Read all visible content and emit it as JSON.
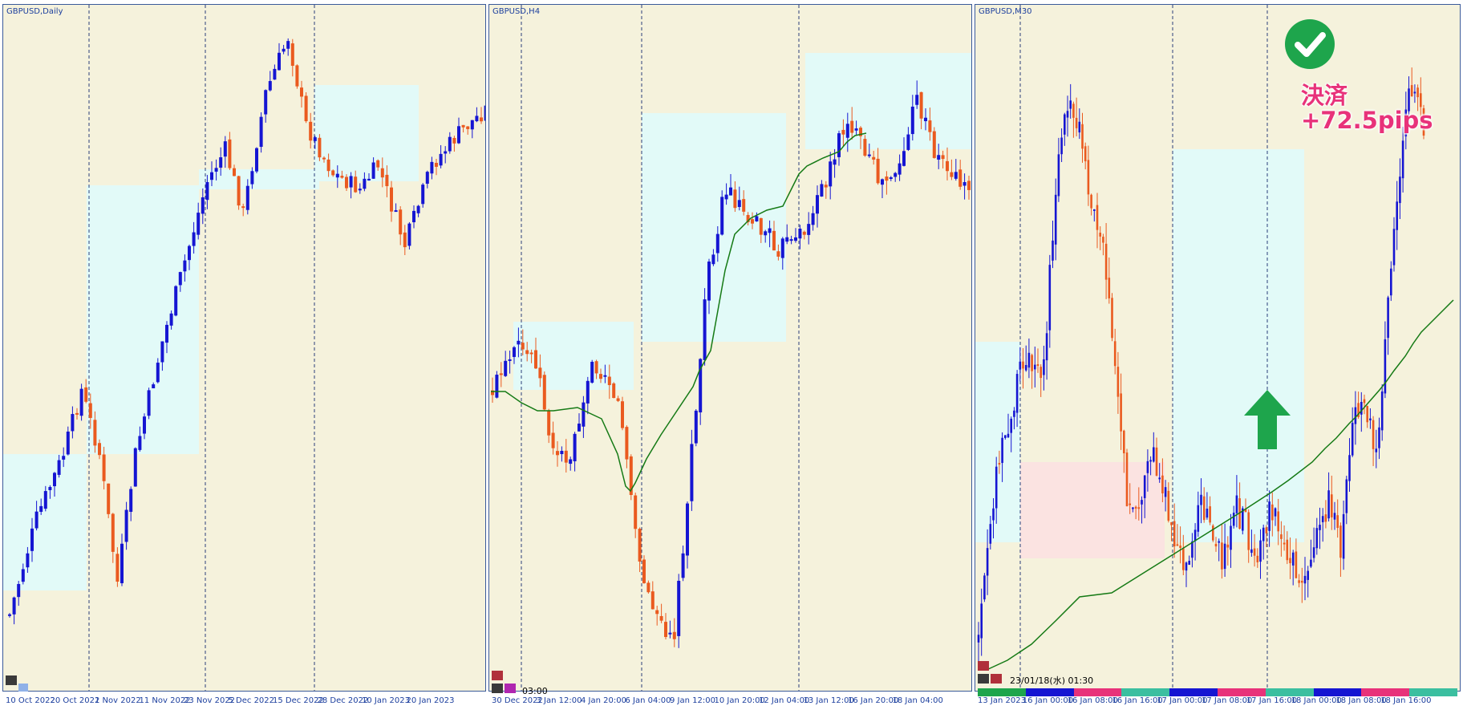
{
  "colors": {
    "background": "#F5F2DC",
    "bull": "#1515D2",
    "bear": "#EA5A1F",
    "ma": "#157A15",
    "zone_cyan": "#E2FAF8",
    "zone_pink": "#FBE3E1",
    "label": "#1c3f9e",
    "accent_green": "#1EA54C",
    "accent_pink": "#E8327A"
  },
  "panels": [
    {
      "title": "GBPUSD,Daily",
      "x_labels": [
        "10 Oct 2022",
        "20 Oct 2022",
        "1 Nov 2022",
        "11 Nov 2022",
        "23 Nov 2022",
        "5 Dec 2022",
        "15 Dec 2022",
        "28 Dec 2022",
        "10 Jan 2023",
        "20 Jan 2023"
      ],
      "time_readout": ""
    },
    {
      "title": "GBPUSD,H4",
      "x_labels": [
        "30 Dec 2022",
        "3 Jan 12:00",
        "4 Jan 20:00",
        "6 Jan 04:00",
        "9 Jan 12:00",
        "10 Jan 20:00",
        "12 Jan 04:00",
        "13 Jan 12:00",
        "16 Jan 20:00",
        "18 Jan 04:00"
      ],
      "time_readout": "03:00"
    },
    {
      "title": "GBPUSD,M30",
      "x_labels": [
        "13 Jan 2023",
        "16 Jan 00:00",
        "16 Jan 08:00",
        "16 Jan 16:00",
        "17 Jan 00:00",
        "17 Jan 08:00",
        "17 Jan 16:00",
        "18 Jan 00:00",
        "18 Jan 08:00",
        "18 Jan 16:00"
      ],
      "time_readout": "23/01/18(水) 01:30"
    }
  ],
  "annotation": {
    "result_line1": "決済",
    "result_line2": "+72.5pips",
    "check_icon": "check-circle-icon",
    "arrow_icon": "up-arrow-icon"
  }
}
